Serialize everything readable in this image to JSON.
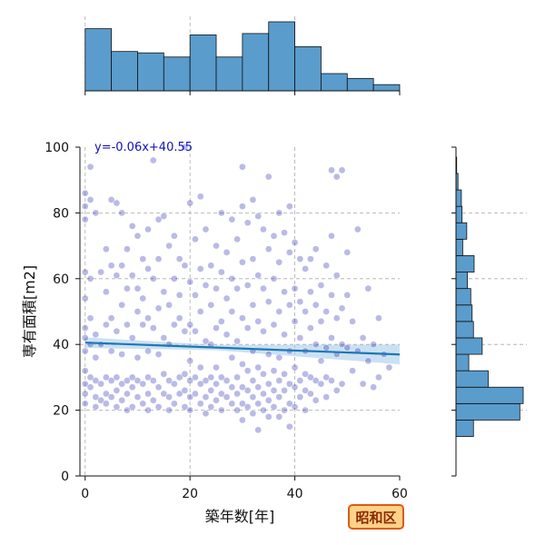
{
  "chart_data": {
    "type": "scatter",
    "title": "",
    "xlabel": "築年数[年]",
    "ylabel": "専有面積[m2]",
    "xlim": [
      -1,
      60
    ],
    "ylim": [
      0,
      100
    ],
    "xticks": [
      0,
      20,
      40,
      60
    ],
    "yticks": [
      0,
      20,
      40,
      60,
      80,
      100
    ],
    "grid": true,
    "annotation": "y=-0.06x+40.55",
    "badge": "昭和区",
    "regression": {
      "slope": -0.06,
      "intercept": 40.55,
      "x_range": [
        0,
        60
      ]
    },
    "point_color": "#1a1ab0",
    "line_color": "#1f77b4",
    "hist_color": "#5a9ccc",
    "badge_fill": "#ffd28a",
    "badge_stroke": "#e05a10",
    "top_histogram": {
      "bin_edges": [
        0,
        5,
        10,
        15,
        20,
        25,
        30,
        35,
        40,
        45,
        50,
        55,
        60
      ],
      "counts": [
        90,
        57,
        55,
        49,
        81,
        49,
        83,
        100,
        64,
        25,
        18,
        9
      ]
    },
    "right_histogram": {
      "bin_edges": [
        12,
        17,
        22,
        27,
        32,
        37,
        42,
        47,
        52,
        57,
        62,
        67,
        72,
        77,
        82,
        87,
        92,
        97
      ],
      "counts": [
        26,
        95,
        100,
        48,
        19,
        39,
        26,
        24,
        22,
        17,
        27,
        10,
        16,
        9,
        8,
        3,
        1
      ]
    },
    "points": [
      [
        0,
        86
      ],
      [
        0,
        82
      ],
      [
        0,
        78
      ],
      [
        0,
        62
      ],
      [
        0,
        54
      ],
      [
        0,
        45
      ],
      [
        0,
        42
      ],
      [
        0,
        38
      ],
      [
        0,
        32
      ],
      [
        0,
        28
      ],
      [
        0,
        25
      ],
      [
        0,
        22
      ],
      [
        1,
        94
      ],
      [
        1,
        84
      ],
      [
        1,
        60
      ],
      [
        1,
        48
      ],
      [
        1,
        40
      ],
      [
        1,
        30
      ],
      [
        1,
        27
      ],
      [
        2,
        80
      ],
      [
        2,
        43
      ],
      [
        2,
        36
      ],
      [
        2,
        29
      ],
      [
        2,
        24
      ],
      [
        2,
        21
      ],
      [
        3,
        62
      ],
      [
        3,
        40
      ],
      [
        3,
        28
      ],
      [
        3,
        23
      ],
      [
        4,
        69
      ],
      [
        4,
        56
      ],
      [
        4,
        46
      ],
      [
        4,
        30
      ],
      [
        4,
        25
      ],
      [
        4,
        22
      ],
      [
        5,
        84
      ],
      [
        5,
        64
      ],
      [
        5,
        48
      ],
      [
        5,
        38
      ],
      [
        5,
        29
      ],
      [
        5,
        24
      ],
      [
        6,
        83
      ],
      [
        6,
        61
      ],
      [
        6,
        44
      ],
      [
        6,
        30
      ],
      [
        6,
        26
      ],
      [
        6,
        21
      ],
      [
        7,
        80
      ],
      [
        7,
        64
      ],
      [
        7,
        52
      ],
      [
        7,
        37
      ],
      [
        7,
        28
      ],
      [
        7,
        23
      ],
      [
        8,
        69
      ],
      [
        8,
        57
      ],
      [
        8,
        46
      ],
      [
        8,
        29
      ],
      [
        8,
        25
      ],
      [
        8,
        20
      ],
      [
        9,
        76
      ],
      [
        9,
        61
      ],
      [
        9,
        42
      ],
      [
        9,
        30
      ],
      [
        9,
        27
      ],
      [
        9,
        21
      ],
      [
        10,
        73
      ],
      [
        10,
        57
      ],
      [
        10,
        50
      ],
      [
        10,
        36
      ],
      [
        10,
        29
      ],
      [
        10,
        24
      ],
      [
        11,
        66
      ],
      [
        11,
        54
      ],
      [
        11,
        46
      ],
      [
        11,
        28
      ],
      [
        11,
        22
      ],
      [
        12,
        75
      ],
      [
        12,
        63
      ],
      [
        12,
        48
      ],
      [
        12,
        38
      ],
      [
        12,
        30
      ],
      [
        12,
        25
      ],
      [
        12,
        20
      ],
      [
        13,
        96
      ],
      [
        13,
        60
      ],
      [
        13,
        45
      ],
      [
        13,
        29
      ],
      [
        13,
        23
      ],
      [
        14,
        78
      ],
      [
        14,
        66
      ],
      [
        14,
        51
      ],
      [
        14,
        37
      ],
      [
        14,
        27
      ],
      [
        14,
        21
      ],
      [
        15,
        79
      ],
      [
        15,
        56
      ],
      [
        15,
        42
      ],
      [
        15,
        31
      ],
      [
        15,
        25
      ],
      [
        16,
        70
      ],
      [
        16,
        52
      ],
      [
        16,
        40
      ],
      [
        16,
        29
      ],
      [
        16,
        24
      ],
      [
        16,
        20
      ],
      [
        17,
        73
      ],
      [
        17,
        60
      ],
      [
        17,
        46
      ],
      [
        17,
        28
      ],
      [
        17,
        22
      ],
      [
        18,
        66
      ],
      [
        18,
        55
      ],
      [
        18,
        48
      ],
      [
        18,
        30
      ],
      [
        18,
        25
      ],
      [
        19,
        100
      ],
      [
        19,
        64
      ],
      [
        19,
        44
      ],
      [
        19,
        31
      ],
      [
        19,
        26
      ],
      [
        19,
        21
      ],
      [
        20,
        83
      ],
      [
        20,
        59
      ],
      [
        20,
        46
      ],
      [
        20,
        35
      ],
      [
        20,
        29
      ],
      [
        20,
        24
      ],
      [
        20,
        20
      ],
      [
        21,
        72
      ],
      [
        21,
        55
      ],
      [
        21,
        44
      ],
      [
        21,
        30
      ],
      [
        21,
        25
      ],
      [
        22,
        85
      ],
      [
        22,
        63
      ],
      [
        22,
        50
      ],
      [
        22,
        33
      ],
      [
        22,
        28
      ],
      [
        22,
        22
      ],
      [
        23,
        75
      ],
      [
        23,
        58
      ],
      [
        23,
        41
      ],
      [
        23,
        29
      ],
      [
        23,
        24
      ],
      [
        23,
        19
      ],
      [
        24,
        64
      ],
      [
        24,
        52
      ],
      [
        24,
        40
      ],
      [
        24,
        30
      ],
      [
        24,
        26
      ],
      [
        24,
        21
      ],
      [
        25,
        70
      ],
      [
        25,
        57
      ],
      [
        25,
        45
      ],
      [
        25,
        33
      ],
      [
        25,
        28
      ],
      [
        25,
        23
      ],
      [
        26,
        80
      ],
      [
        26,
        62
      ],
      [
        26,
        47
      ],
      [
        26,
        30
      ],
      [
        26,
        25
      ],
      [
        26,
        20
      ],
      [
        27,
        68
      ],
      [
        27,
        54
      ],
      [
        27,
        43
      ],
      [
        27,
        29
      ],
      [
        27,
        24
      ],
      [
        28,
        78
      ],
      [
        28,
        60
      ],
      [
        28,
        50
      ],
      [
        28,
        36
      ],
      [
        28,
        27
      ],
      [
        28,
        22
      ],
      [
        29,
        72
      ],
      [
        29,
        57
      ],
      [
        29,
        41
      ],
      [
        29,
        30
      ],
      [
        29,
        25
      ],
      [
        29,
        20
      ],
      [
        30,
        94
      ],
      [
        30,
        82
      ],
      [
        30,
        65
      ],
      [
        30,
        48
      ],
      [
        30,
        34
      ],
      [
        30,
        27
      ],
      [
        30,
        22
      ],
      [
        30,
        17
      ],
      [
        31,
        77
      ],
      [
        31,
        58
      ],
      [
        31,
        45
      ],
      [
        31,
        32
      ],
      [
        31,
        26
      ],
      [
        31,
        21
      ],
      [
        32,
        84
      ],
      [
        32,
        66
      ],
      [
        32,
        52
      ],
      [
        32,
        38
      ],
      [
        32,
        29
      ],
      [
        32,
        24
      ],
      [
        32,
        19
      ],
      [
        33,
        79
      ],
      [
        33,
        61
      ],
      [
        33,
        47
      ],
      [
        33,
        33
      ],
      [
        33,
        27
      ],
      [
        33,
        22
      ],
      [
        33,
        14
      ],
      [
        34,
        75
      ],
      [
        34,
        57
      ],
      [
        34,
        44
      ],
      [
        34,
        31
      ],
      [
        34,
        25
      ],
      [
        34,
        20
      ],
      [
        35,
        91
      ],
      [
        35,
        69
      ],
      [
        35,
        53
      ],
      [
        35,
        37
      ],
      [
        35,
        28
      ],
      [
        35,
        23
      ],
      [
        35,
        18
      ],
      [
        36,
        73
      ],
      [
        36,
        60
      ],
      [
        36,
        46
      ],
      [
        36,
        32
      ],
      [
        36,
        26
      ],
      [
        36,
        21
      ],
      [
        37,
        80
      ],
      [
        37,
        65
      ],
      [
        37,
        50
      ],
      [
        37,
        36
      ],
      [
        37,
        29
      ],
      [
        37,
        24
      ],
      [
        37,
        18
      ],
      [
        38,
        74
      ],
      [
        38,
        56
      ],
      [
        38,
        43
      ],
      [
        38,
        31
      ],
      [
        38,
        26
      ],
      [
        38,
        20
      ],
      [
        39,
        82
      ],
      [
        39,
        68
      ],
      [
        39,
        52
      ],
      [
        39,
        38
      ],
      [
        39,
        28
      ],
      [
        39,
        22
      ],
      [
        39,
        15
      ],
      [
        40,
        71
      ],
      [
        40,
        57
      ],
      [
        40,
        47
      ],
      [
        40,
        33
      ],
      [
        40,
        27
      ],
      [
        40,
        21
      ],
      [
        41,
        66
      ],
      [
        41,
        53
      ],
      [
        41,
        42
      ],
      [
        41,
        29
      ],
      [
        41,
        24
      ],
      [
        42,
        63
      ],
      [
        42,
        50
      ],
      [
        42,
        38
      ],
      [
        42,
        31
      ],
      [
        42,
        26
      ],
      [
        42,
        20
      ],
      [
        43,
        66
      ],
      [
        43,
        56
      ],
      [
        43,
        45
      ],
      [
        43,
        30
      ],
      [
        43,
        25
      ],
      [
        44,
        69
      ],
      [
        44,
        52
      ],
      [
        44,
        40
      ],
      [
        44,
        29
      ],
      [
        44,
        23
      ],
      [
        45,
        58
      ],
      [
        45,
        47
      ],
      [
        45,
        35
      ],
      [
        45,
        28
      ],
      [
        46,
        64
      ],
      [
        46,
        50
      ],
      [
        46,
        39
      ],
      [
        46,
        30
      ],
      [
        46,
        24
      ],
      [
        47,
        93
      ],
      [
        47,
        73
      ],
      [
        47,
        55
      ],
      [
        47,
        42
      ],
      [
        47,
        29
      ],
      [
        48,
        91
      ],
      [
        48,
        61
      ],
      [
        48,
        48
      ],
      [
        48,
        37
      ],
      [
        48,
        26
      ],
      [
        49,
        93
      ],
      [
        49,
        51
      ],
      [
        49,
        40
      ],
      [
        49,
        28
      ],
      [
        50,
        68
      ],
      [
        50,
        55
      ],
      [
        50,
        39
      ],
      [
        51,
        47
      ],
      [
        51,
        32
      ],
      [
        52,
        75
      ],
      [
        52,
        38
      ],
      [
        53,
        42
      ],
      [
        53,
        28
      ],
      [
        54,
        57
      ],
      [
        54,
        35
      ],
      [
        55,
        40
      ],
      [
        55,
        27
      ],
      [
        56,
        48
      ],
      [
        56,
        30
      ],
      [
        57,
        37
      ],
      [
        58,
        33
      ]
    ]
  }
}
